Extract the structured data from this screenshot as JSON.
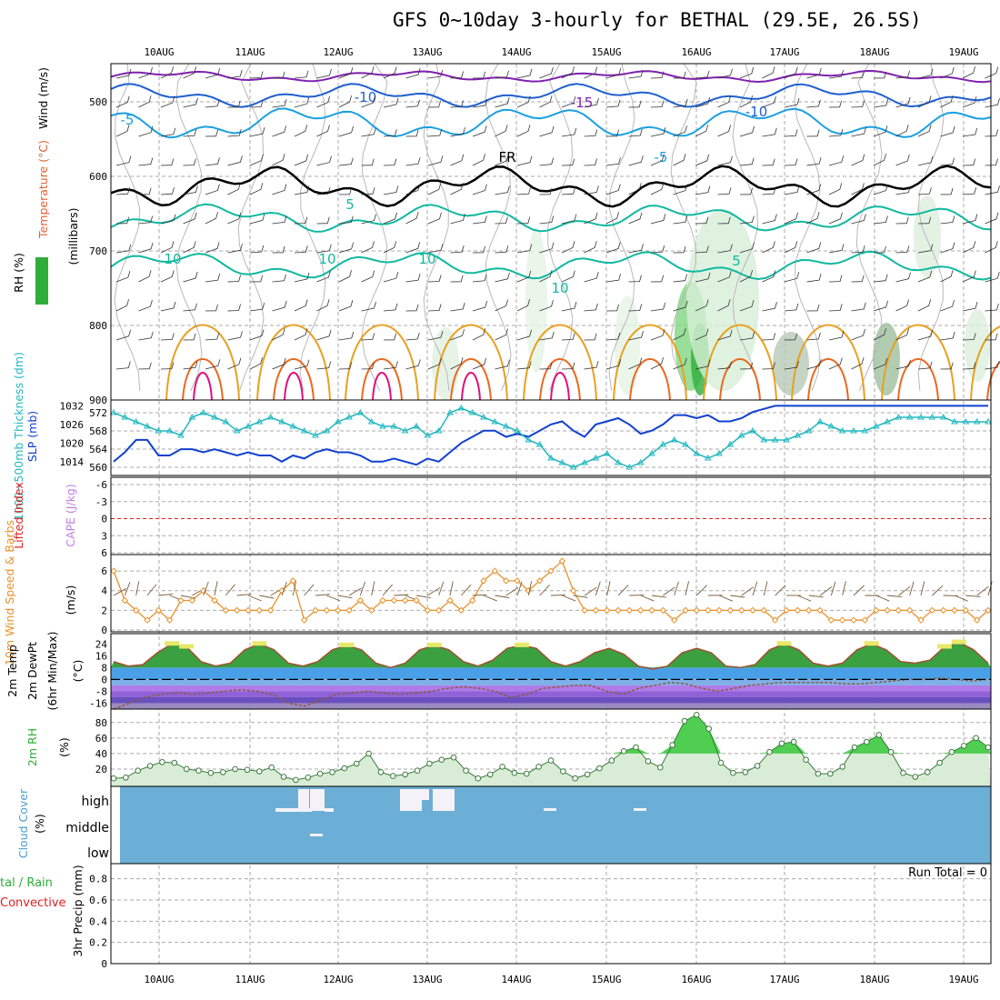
{
  "title": "GFS 0~10day 3-hourly for BETHAL (29.5E, 26.5S)",
  "dates": [
    "10AUG",
    "11AUG",
    "12AUG",
    "13AUG",
    "14AUG",
    "15AUG",
    "16AUG",
    "17AUG",
    "18AUG",
    "19AUG"
  ],
  "colors": {
    "temp_cold": "#1e5fd0",
    "temp_cool": "#1aa0e0",
    "temp_purple": "#8020b0",
    "temp_teal": "#10b8a0",
    "temp_orange": "#e8a020",
    "temp_magenta": "#e0107a",
    "freezing": "#000000",
    "rh_green": "#2fae3a",
    "slp": "#1040d0",
    "thickness": "#20b8c0",
    "wind10": "#e8902a",
    "cloud": "#6baed6",
    "lifted": "#e02020"
  },
  "panels": {
    "upper": {
      "ylabel_wind": "Wind (m/s)",
      "ylabel_temp": "Temperature (°C)",
      "ylabel_rh": "RH (%)",
      "ylabel_p": "(millibars)",
      "pressure_ticks": [
        "500",
        "600",
        "700",
        "800",
        "900"
      ],
      "contour_labels": [
        "-15",
        "-10",
        "-10",
        "-5",
        "-5",
        "FR",
        "5",
        "5",
        "10",
        "10",
        "10",
        "10"
      ]
    },
    "slp": {
      "ylabel_thk": "1000~500mb Thickness (dm)",
      "ylabel_slp": "SLP (mb)",
      "left_ticks": [
        "572",
        "568",
        "564",
        "560"
      ],
      "right_ticks": [
        "1032",
        "1026",
        "1020",
        "1014"
      ]
    },
    "cape": {
      "ylabel_li": "Lifted Index",
      "ylabel_cape": "CAPE (J/kg)",
      "ticks": [
        "-6",
        "-3",
        "0",
        "3",
        "6"
      ]
    },
    "wind10": {
      "ylabel": "10m Wind Speed & Barbs",
      "units": "(m/s)",
      "ticks": [
        "6",
        "4",
        "2",
        "0"
      ]
    },
    "temp2m": {
      "ylabel": "2m Temp",
      "ylabel2": "2m DewPt",
      "ylabel3": "(6hr Min/Max)",
      "units": "(°C)",
      "ticks": [
        "24",
        "16",
        "8",
        "0",
        "-8",
        "-16"
      ]
    },
    "rh2m": {
      "ylabel": "2m RH",
      "units": "(%)",
      "ticks": [
        "80",
        "60",
        "40",
        "20"
      ]
    },
    "cloud": {
      "ylabel": "Cloud Cover",
      "units": "(%)",
      "levels": [
        "high",
        "middle",
        "low"
      ]
    },
    "precip": {
      "ylabel_total": "tal / Rain",
      "ylabel_conv": "Convective",
      "ylabel_p": "3hr Precip (mm)",
      "run_total": "Run Total = 0",
      "ticks": [
        "0.8",
        "0.6",
        "0.4",
        "0.2",
        "0"
      ]
    }
  },
  "chart_data": [
    {
      "type": "line",
      "title": "1000~500mb Thickness (dm) / SLP (mb)",
      "series": [
        {
          "name": "SLP (mb)",
          "values": [
            1014,
            1017,
            1021,
            1021,
            1016,
            1016,
            1018,
            1018,
            1017,
            1018,
            1017,
            1016,
            1017,
            1016,
            1016,
            1014,
            1016,
            1015,
            1017,
            1018,
            1017,
            1017,
            1016,
            1014,
            1014,
            1015,
            1014,
            1013,
            1015,
            1014,
            1017,
            1020,
            1022,
            1024,
            1024,
            1022,
            1023,
            1022,
            1024,
            1026,
            1027,
            1024,
            1022,
            1026,
            1027,
            1028,
            1026,
            1023,
            1024,
            1026,
            1029,
            1029,
            1028,
            1029,
            1027,
            1027,
            1028,
            1030,
            1031,
            1032,
            1032,
            1032,
            1032,
            1032,
            1032,
            1032,
            1032,
            1032,
            1032,
            1032,
            1032,
            1032,
            1032,
            1032,
            1032,
            1032,
            1032,
            1032,
            1032
          ]
        },
        {
          "name": "1000~500mb Thickness (dm)",
          "values": [
            572,
            571,
            570,
            569,
            568,
            568,
            567,
            571,
            572,
            571,
            570,
            568,
            569,
            570,
            571,
            570,
            569,
            568,
            567,
            568,
            570,
            571,
            572,
            570,
            569,
            569,
            568,
            569,
            567,
            568,
            572,
            573,
            572,
            571,
            570,
            569,
            568,
            566,
            565,
            562,
            561,
            560,
            561,
            562,
            563,
            561,
            560,
            561,
            563,
            565,
            566,
            565,
            563,
            562,
            563,
            565,
            567,
            568,
            566,
            566,
            566,
            567,
            568,
            570,
            569,
            568,
            568,
            568,
            569,
            570,
            571,
            571,
            571,
            571,
            571,
            570,
            570,
            570,
            570
          ]
        }
      ]
    },
    {
      "type": "line",
      "title": "10m Wind Speed (m/s)",
      "values": [
        6,
        3,
        2,
        1,
        2,
        1,
        3,
        3,
        4,
        3,
        2,
        2,
        2,
        2,
        2,
        4,
        5,
        1,
        2,
        2,
        2,
        2,
        3,
        2,
        3,
        3,
        3,
        3,
        2,
        2,
        3,
        2,
        3,
        5,
        6,
        5,
        5,
        4,
        5,
        6,
        7,
        4,
        2,
        2,
        2,
        2,
        2,
        2,
        2,
        2,
        1,
        2,
        2,
        2,
        2,
        2,
        2,
        2,
        2,
        1,
        2,
        2,
        2,
        2,
        1,
        1,
        1,
        1,
        2,
        2,
        2,
        2,
        1,
        2,
        2,
        2,
        2,
        1,
        2
      ]
    },
    {
      "type": "area",
      "title": "2m RH (%)",
      "values": [
        8,
        9,
        18,
        24,
        29,
        28,
        20,
        18,
        15,
        16,
        20,
        19,
        17,
        22,
        10,
        6,
        9,
        14,
        16,
        21,
        27,
        40,
        16,
        11,
        13,
        18,
        27,
        32,
        35,
        18,
        8,
        13,
        23,
        15,
        14,
        23,
        31,
        17,
        8,
        13,
        21,
        31,
        43,
        48,
        30,
        22,
        51,
        82,
        90,
        72,
        28,
        15,
        16,
        24,
        42,
        53,
        55,
        32,
        14,
        14,
        23,
        48,
        55,
        64,
        42,
        15,
        10,
        16,
        28,
        42,
        50,
        60,
        48
      ]
    },
    {
      "type": "area",
      "title": "2m Temp / 2m DewPt (°C)",
      "series": [
        {
          "name": "2m Temp",
          "values": [
            12,
            9,
            10,
            18,
            24,
            22,
            12,
            9,
            11,
            20,
            24,
            20,
            11,
            9,
            12,
            20,
            23,
            20,
            11,
            8,
            11,
            20,
            23,
            20,
            12,
            9,
            13,
            21,
            23,
            21,
            12,
            9,
            12,
            18,
            21,
            17,
            9,
            7,
            9,
            18,
            21,
            18,
            9,
            8,
            10,
            20,
            24,
            20,
            11,
            9,
            11,
            20,
            24,
            20,
            12,
            11,
            13,
            22,
            25,
            20,
            11
          ]
        },
        {
          "name": "2m DewPt",
          "values": [
            -20,
            -16,
            -12,
            -10,
            -9,
            -10,
            -9,
            -8,
            -7,
            -8,
            -10,
            -16,
            -18,
            -14,
            -10,
            -9,
            -8,
            -9,
            -10,
            -9,
            -8,
            -6,
            -5,
            -6,
            -8,
            -12,
            -10,
            -6,
            -5,
            -4,
            -4,
            -8,
            -10,
            -6,
            -4,
            -2,
            -3,
            -6,
            -8,
            -6,
            -4,
            -3,
            -2,
            -2,
            -2,
            -2,
            -3,
            -3,
            -2,
            -1,
            0,
            0,
            1,
            0,
            -1,
            0
          ]
        }
      ]
    }
  ]
}
